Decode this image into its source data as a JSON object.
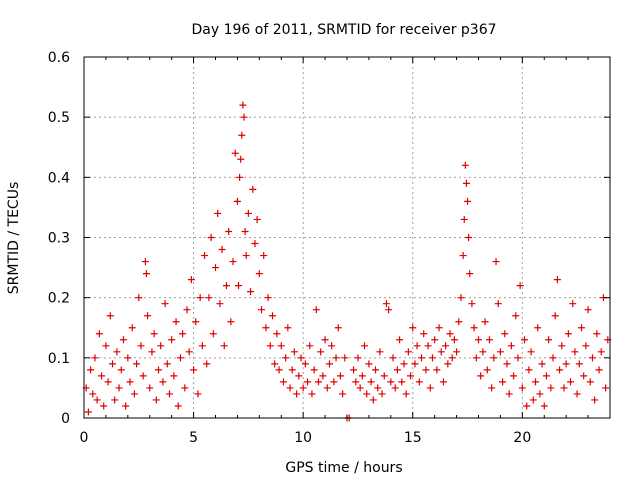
{
  "chart_data": {
    "type": "scatter",
    "title": "Day 196 of 2011, SRMTID for receiver p367",
    "xlabel": "GPS time / hours",
    "ylabel": "SRMTID / TECUs",
    "xlim": [
      0,
      24
    ],
    "ylim": [
      0,
      0.6
    ],
    "xticks": [
      0,
      5,
      10,
      15,
      20
    ],
    "yticks": [
      0,
      0.1,
      0.2,
      0.3,
      0.4,
      0.5,
      0.6
    ],
    "xtick_labels": [
      "0",
      "5",
      "10",
      "15",
      "20"
    ],
    "ytick_labels": [
      "0",
      "0.1",
      "0.2",
      "0.3",
      "0.4",
      "0.5",
      "0.6"
    ],
    "grid": true,
    "marker": "+",
    "color": "#e00000",
    "series": [
      {
        "name": "SRMTID",
        "points": [
          [
            0.1,
            0.05
          ],
          [
            0.2,
            0.01
          ],
          [
            0.3,
            0.08
          ],
          [
            0.4,
            0.04
          ],
          [
            0.5,
            0.1
          ],
          [
            0.6,
            0.03
          ],
          [
            0.7,
            0.14
          ],
          [
            0.8,
            0.07
          ],
          [
            0.9,
            0.02
          ],
          [
            1.0,
            0.12
          ],
          [
            1.1,
            0.06
          ],
          [
            1.2,
            0.17
          ],
          [
            1.3,
            0.09
          ],
          [
            1.4,
            0.03
          ],
          [
            1.5,
            0.11
          ],
          [
            1.6,
            0.05
          ],
          [
            1.7,
            0.08
          ],
          [
            1.8,
            0.13
          ],
          [
            1.9,
            0.02
          ],
          [
            2.0,
            0.1
          ],
          [
            2.1,
            0.06
          ],
          [
            2.2,
            0.15
          ],
          [
            2.3,
            0.04
          ],
          [
            2.4,
            0.09
          ],
          [
            2.5,
            0.2
          ],
          [
            2.6,
            0.12
          ],
          [
            2.7,
            0.07
          ],
          [
            2.8,
            0.26
          ],
          [
            2.85,
            0.24
          ],
          [
            2.9,
            0.17
          ],
          [
            3.0,
            0.05
          ],
          [
            3.1,
            0.11
          ],
          [
            3.2,
            0.14
          ],
          [
            3.3,
            0.03
          ],
          [
            3.4,
            0.08
          ],
          [
            3.5,
            0.12
          ],
          [
            3.6,
            0.06
          ],
          [
            3.7,
            0.19
          ],
          [
            3.8,
            0.09
          ],
          [
            3.9,
            0.04
          ],
          [
            4.0,
            0.13
          ],
          [
            4.1,
            0.07
          ],
          [
            4.2,
            0.16
          ],
          [
            4.3,
            0.02
          ],
          [
            4.4,
            0.1
          ],
          [
            4.5,
            0.14
          ],
          [
            4.6,
            0.05
          ],
          [
            4.7,
            0.18
          ],
          [
            4.8,
            0.11
          ],
          [
            4.9,
            0.23
          ],
          [
            5.0,
            0.08
          ],
          [
            5.1,
            0.16
          ],
          [
            5.2,
            0.04
          ],
          [
            5.3,
            0.2
          ],
          [
            5.4,
            0.12
          ],
          [
            5.5,
            0.27
          ],
          [
            5.6,
            0.09
          ],
          [
            5.7,
            0.2
          ],
          [
            5.8,
            0.3
          ],
          [
            5.9,
            0.14
          ],
          [
            6.0,
            0.25
          ],
          [
            6.1,
            0.34
          ],
          [
            6.2,
            0.19
          ],
          [
            6.3,
            0.28
          ],
          [
            6.4,
            0.12
          ],
          [
            6.5,
            0.22
          ],
          [
            6.6,
            0.31
          ],
          [
            6.7,
            0.16
          ],
          [
            6.8,
            0.26
          ],
          [
            6.9,
            0.44
          ],
          [
            7.0,
            0.36
          ],
          [
            7.05,
            0.22
          ],
          [
            7.1,
            0.4
          ],
          [
            7.15,
            0.43
          ],
          [
            7.2,
            0.47
          ],
          [
            7.25,
            0.52
          ],
          [
            7.3,
            0.5
          ],
          [
            7.35,
            0.31
          ],
          [
            7.4,
            0.27
          ],
          [
            7.5,
            0.34
          ],
          [
            7.6,
            0.21
          ],
          [
            7.7,
            0.38
          ],
          [
            7.8,
            0.29
          ],
          [
            7.9,
            0.33
          ],
          [
            8.0,
            0.24
          ],
          [
            8.1,
            0.18
          ],
          [
            8.2,
            0.27
          ],
          [
            8.3,
            0.15
          ],
          [
            8.4,
            0.2
          ],
          [
            8.5,
            0.12
          ],
          [
            8.6,
            0.17
          ],
          [
            8.7,
            0.09
          ],
          [
            8.8,
            0.14
          ],
          [
            8.9,
            0.08
          ],
          [
            9.0,
            0.12
          ],
          [
            9.1,
            0.06
          ],
          [
            9.2,
            0.1
          ],
          [
            9.3,
            0.15
          ],
          [
            9.4,
            0.05
          ],
          [
            9.5,
            0.08
          ],
          [
            9.6,
            0.11
          ],
          [
            9.7,
            0.04
          ],
          [
            9.8,
            0.07
          ],
          [
            9.9,
            0.1
          ],
          [
            10.0,
            0.05
          ],
          [
            10.1,
            0.09
          ],
          [
            10.2,
            0.06
          ],
          [
            10.3,
            0.12
          ],
          [
            10.4,
            0.04
          ],
          [
            10.5,
            0.08
          ],
          [
            10.6,
            0.18
          ],
          [
            10.7,
            0.06
          ],
          [
            10.8,
            0.11
          ],
          [
            10.9,
            0.07
          ],
          [
            11.0,
            0.13
          ],
          [
            11.1,
            0.05
          ],
          [
            11.2,
            0.09
          ],
          [
            11.3,
            0.12
          ],
          [
            11.4,
            0.06
          ],
          [
            11.5,
            0.1
          ],
          [
            11.6,
            0.15
          ],
          [
            11.7,
            0.07
          ],
          [
            11.8,
            0.04
          ],
          [
            11.9,
            0.1
          ],
          [
            12.0,
            0.0
          ],
          [
            12.1,
            0.0
          ],
          [
            12.3,
            0.08
          ],
          [
            12.4,
            0.06
          ],
          [
            12.5,
            0.1
          ],
          [
            12.6,
            0.05
          ],
          [
            12.7,
            0.07
          ],
          [
            12.8,
            0.12
          ],
          [
            12.9,
            0.04
          ],
          [
            13.0,
            0.09
          ],
          [
            13.1,
            0.06
          ],
          [
            13.2,
            0.03
          ],
          [
            13.3,
            0.08
          ],
          [
            13.4,
            0.05
          ],
          [
            13.5,
            0.11
          ],
          [
            13.6,
            0.04
          ],
          [
            13.7,
            0.07
          ],
          [
            13.8,
            0.19
          ],
          [
            13.9,
            0.18
          ],
          [
            14.0,
            0.06
          ],
          [
            14.1,
            0.1
          ],
          [
            14.2,
            0.05
          ],
          [
            14.3,
            0.08
          ],
          [
            14.4,
            0.13
          ],
          [
            14.5,
            0.06
          ],
          [
            14.6,
            0.09
          ],
          [
            14.7,
            0.04
          ],
          [
            14.8,
            0.11
          ],
          [
            14.9,
            0.07
          ],
          [
            15.0,
            0.15
          ],
          [
            15.1,
            0.09
          ],
          [
            15.2,
            0.12
          ],
          [
            15.3,
            0.06
          ],
          [
            15.4,
            0.1
          ],
          [
            15.5,
            0.14
          ],
          [
            15.6,
            0.08
          ],
          [
            15.7,
            0.12
          ],
          [
            15.8,
            0.05
          ],
          [
            15.9,
            0.1
          ],
          [
            16.0,
            0.13
          ],
          [
            16.1,
            0.08
          ],
          [
            16.2,
            0.15
          ],
          [
            16.3,
            0.11
          ],
          [
            16.4,
            0.06
          ],
          [
            16.5,
            0.12
          ],
          [
            16.6,
            0.09
          ],
          [
            16.7,
            0.14
          ],
          [
            16.8,
            0.1
          ],
          [
            16.9,
            0.13
          ],
          [
            17.0,
            0.11
          ],
          [
            17.1,
            0.16
          ],
          [
            17.2,
            0.2
          ],
          [
            17.3,
            0.27
          ],
          [
            17.35,
            0.33
          ],
          [
            17.4,
            0.42
          ],
          [
            17.45,
            0.39
          ],
          [
            17.5,
            0.36
          ],
          [
            17.55,
            0.3
          ],
          [
            17.6,
            0.24
          ],
          [
            17.7,
            0.19
          ],
          [
            17.8,
            0.15
          ],
          [
            17.9,
            0.1
          ],
          [
            18.0,
            0.13
          ],
          [
            18.1,
            0.07
          ],
          [
            18.2,
            0.11
          ],
          [
            18.3,
            0.16
          ],
          [
            18.4,
            0.08
          ],
          [
            18.5,
            0.13
          ],
          [
            18.6,
            0.05
          ],
          [
            18.7,
            0.1
          ],
          [
            18.8,
            0.26
          ],
          [
            18.9,
            0.19
          ],
          [
            19.0,
            0.11
          ],
          [
            19.1,
            0.06
          ],
          [
            19.2,
            0.14
          ],
          [
            19.3,
            0.09
          ],
          [
            19.4,
            0.04
          ],
          [
            19.5,
            0.12
          ],
          [
            19.6,
            0.07
          ],
          [
            19.7,
            0.17
          ],
          [
            19.8,
            0.1
          ],
          [
            19.9,
            0.22
          ],
          [
            20.0,
            0.05
          ],
          [
            20.1,
            0.13
          ],
          [
            20.2,
            0.02
          ],
          [
            20.3,
            0.08
          ],
          [
            20.4,
            0.11
          ],
          [
            20.5,
            0.03
          ],
          [
            20.6,
            0.06
          ],
          [
            20.7,
            0.15
          ],
          [
            20.8,
            0.04
          ],
          [
            20.9,
            0.09
          ],
          [
            21.0,
            0.02
          ],
          [
            21.1,
            0.07
          ],
          [
            21.2,
            0.13
          ],
          [
            21.3,
            0.05
          ],
          [
            21.4,
            0.1
          ],
          [
            21.5,
            0.17
          ],
          [
            21.6,
            0.23
          ],
          [
            21.7,
            0.08
          ],
          [
            21.8,
            0.12
          ],
          [
            21.9,
            0.05
          ],
          [
            22.0,
            0.09
          ],
          [
            22.1,
            0.14
          ],
          [
            22.2,
            0.06
          ],
          [
            22.3,
            0.19
          ],
          [
            22.4,
            0.11
          ],
          [
            22.5,
            0.04
          ],
          [
            22.6,
            0.09
          ],
          [
            22.7,
            0.15
          ],
          [
            22.8,
            0.07
          ],
          [
            22.9,
            0.12
          ],
          [
            23.0,
            0.18
          ],
          [
            23.1,
            0.06
          ],
          [
            23.2,
            0.1
          ],
          [
            23.3,
            0.03
          ],
          [
            23.4,
            0.14
          ],
          [
            23.5,
            0.08
          ],
          [
            23.6,
            0.11
          ],
          [
            23.7,
            0.2
          ],
          [
            23.8,
            0.05
          ],
          [
            23.9,
            0.13
          ]
        ]
      }
    ]
  }
}
